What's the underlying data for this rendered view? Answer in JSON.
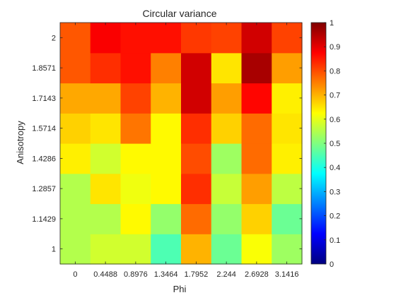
{
  "chart_data": {
    "type": "heatmap",
    "title": "Circular variance",
    "xlabel": "Phi",
    "ylabel": "Anisotropy",
    "x_tick_labels": [
      "0",
      "0.4488",
      "0.8976",
      "1.3464",
      "1.7952",
      "2.244",
      "2.6928",
      "3.1416"
    ],
    "y_tick_labels": [
      "1",
      "1.1429",
      "1.2857",
      "1.4286",
      "1.5714",
      "1.7143",
      "1.8571",
      "2"
    ],
    "colormap": "jet",
    "clim": [
      0,
      1
    ],
    "colorbar_ticks": [
      "0",
      "0.1",
      "0.2",
      "0.3",
      "0.4",
      "0.5",
      "0.6",
      "0.7",
      "0.8",
      "0.9",
      "1"
    ],
    "rows_from_bottom": [
      [
        0.55,
        0.58,
        0.58,
        0.45,
        0.7,
        0.48,
        0.62,
        0.53
      ],
      [
        0.55,
        0.55,
        0.63,
        0.52,
        0.77,
        0.52,
        0.67,
        0.48
      ],
      [
        0.55,
        0.65,
        0.61,
        0.63,
        0.83,
        0.57,
        0.72,
        0.56
      ],
      [
        0.64,
        0.58,
        0.63,
        0.63,
        0.8,
        0.53,
        0.77,
        0.64
      ],
      [
        0.67,
        0.65,
        0.76,
        0.63,
        0.83,
        0.67,
        0.77,
        0.65
      ],
      [
        0.71,
        0.71,
        0.81,
        0.7,
        0.92,
        0.72,
        0.87,
        0.64
      ],
      [
        0.79,
        0.83,
        0.86,
        0.75,
        0.92,
        0.65,
        0.96,
        0.72
      ],
      [
        0.79,
        0.88,
        0.86,
        0.86,
        0.82,
        0.81,
        0.92,
        0.81
      ]
    ]
  }
}
